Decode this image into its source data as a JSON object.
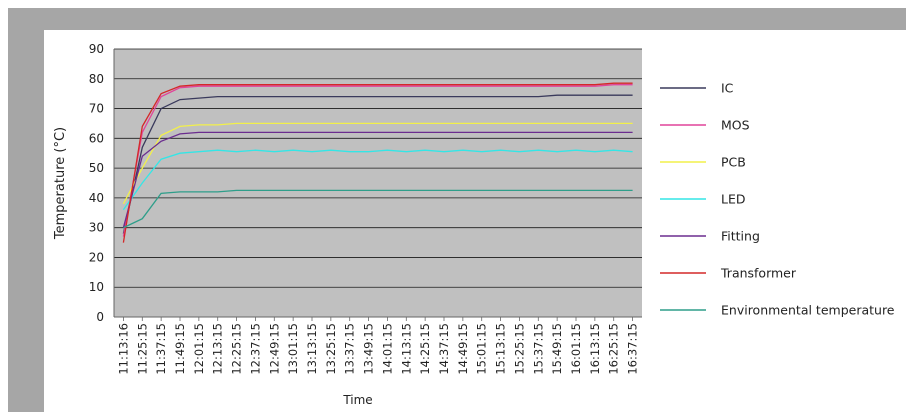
{
  "chart_data": {
    "type": "line",
    "title": "",
    "xlabel": "Time",
    "ylabel": "Temperature (°C)",
    "ylim": [
      0,
      90
    ],
    "y_ticks": [
      0,
      10,
      20,
      30,
      40,
      50,
      60,
      70,
      80,
      90
    ],
    "grid": true,
    "legend_position": "right",
    "x_tick_labels": [
      "11:13:16",
      "11:25:15",
      "11:37:15",
      "11:49:15",
      "12:01:15",
      "12:13:15",
      "12:25:15",
      "12:37:15",
      "12:49:15",
      "13:01:15",
      "13:13:15",
      "13:25:15",
      "13:37:15",
      "13:49:15",
      "14:01:15",
      "14:13:15",
      "14:25:15",
      "14:37:15",
      "14:49:15",
      "15:01:15",
      "15:13:15",
      "15:25:15",
      "15:37:15",
      "15:49:15",
      "16:01:15",
      "16:13:15",
      "16:25:15",
      "16:37:15"
    ],
    "x": [
      "11:13:16",
      "11:25:15",
      "11:37:15",
      "11:49:15",
      "12:01:15",
      "12:13:15",
      "12:25:15",
      "12:37:15",
      "12:49:15",
      "13:01:15",
      "13:13:15",
      "13:25:15",
      "13:37:15",
      "13:49:15",
      "14:01:15",
      "14:13:15",
      "14:25:15",
      "14:37:15",
      "14:49:15",
      "15:01:15",
      "15:13:15",
      "15:25:15",
      "15:37:15",
      "15:49:15",
      "16:01:15",
      "16:13:15",
      "16:25:15",
      "16:37:15"
    ],
    "series": [
      {
        "name": "IC",
        "color": "#3a3a5c",
        "values": [
          28,
          57,
          70,
          73,
          73.5,
          74,
          74,
          74,
          74,
          74,
          74,
          74,
          74,
          74,
          74,
          74,
          74,
          74,
          74,
          74,
          74,
          74,
          74,
          74.5,
          74.5,
          74.5,
          74.5,
          74.5
        ]
      },
      {
        "name": "MOS",
        "color": "#e0449a",
        "values": [
          27,
          62,
          74,
          77,
          77.5,
          77.5,
          77.5,
          77.5,
          77.5,
          77.5,
          77.5,
          77.5,
          77.5,
          77.5,
          77.5,
          77.5,
          77.5,
          77.5,
          77.5,
          77.5,
          77.5,
          77.5,
          77.5,
          77.5,
          77.5,
          77.5,
          78,
          78
        ]
      },
      {
        "name": "PCB",
        "color": "#f2f04a",
        "values": [
          38,
          50,
          61,
          64,
          64.5,
          64.5,
          65,
          65,
          65,
          65,
          65,
          65,
          65,
          65,
          65,
          65,
          65,
          65,
          65,
          65,
          65,
          65,
          65,
          65,
          65,
          65,
          65,
          65
        ]
      },
      {
        "name": "LED",
        "color": "#33e6e6",
        "values": [
          36,
          45,
          53,
          55,
          55.5,
          56,
          55.5,
          56,
          55.5,
          56,
          55.5,
          56,
          55.5,
          55.5,
          56,
          55.5,
          56,
          55.5,
          56,
          55.5,
          56,
          55.5,
          56,
          55.5,
          56,
          55.5,
          56,
          55.5
        ]
      },
      {
        "name": "Fitting",
        "color": "#6b2d8f",
        "values": [
          30,
          54,
          59,
          61.5,
          62,
          62,
          62,
          62,
          62,
          62,
          62,
          62,
          62,
          62,
          62,
          62,
          62,
          62,
          62,
          62,
          62,
          62,
          62,
          62,
          62,
          62,
          62,
          62
        ]
      },
      {
        "name": "Transformer",
        "color": "#d42828",
        "values": [
          25,
          64,
          75,
          77.5,
          78,
          78,
          78,
          78,
          78,
          78,
          78,
          78,
          78,
          78,
          78,
          78,
          78,
          78,
          78,
          78,
          78,
          78,
          78,
          78,
          78,
          78,
          78.5,
          78.5
        ]
      },
      {
        "name": "Environmental temperature",
        "color": "#2e9e8a",
        "values": [
          30,
          33,
          41.5,
          42,
          42,
          42,
          42.5,
          42.5,
          42.5,
          42.5,
          42.5,
          42.5,
          42.5,
          42.5,
          42.5,
          42.5,
          42.5,
          42.5,
          42.5,
          42.5,
          42.5,
          42.5,
          42.5,
          42.5,
          42.5,
          42.5,
          42.5,
          42.5
        ]
      }
    ]
  }
}
